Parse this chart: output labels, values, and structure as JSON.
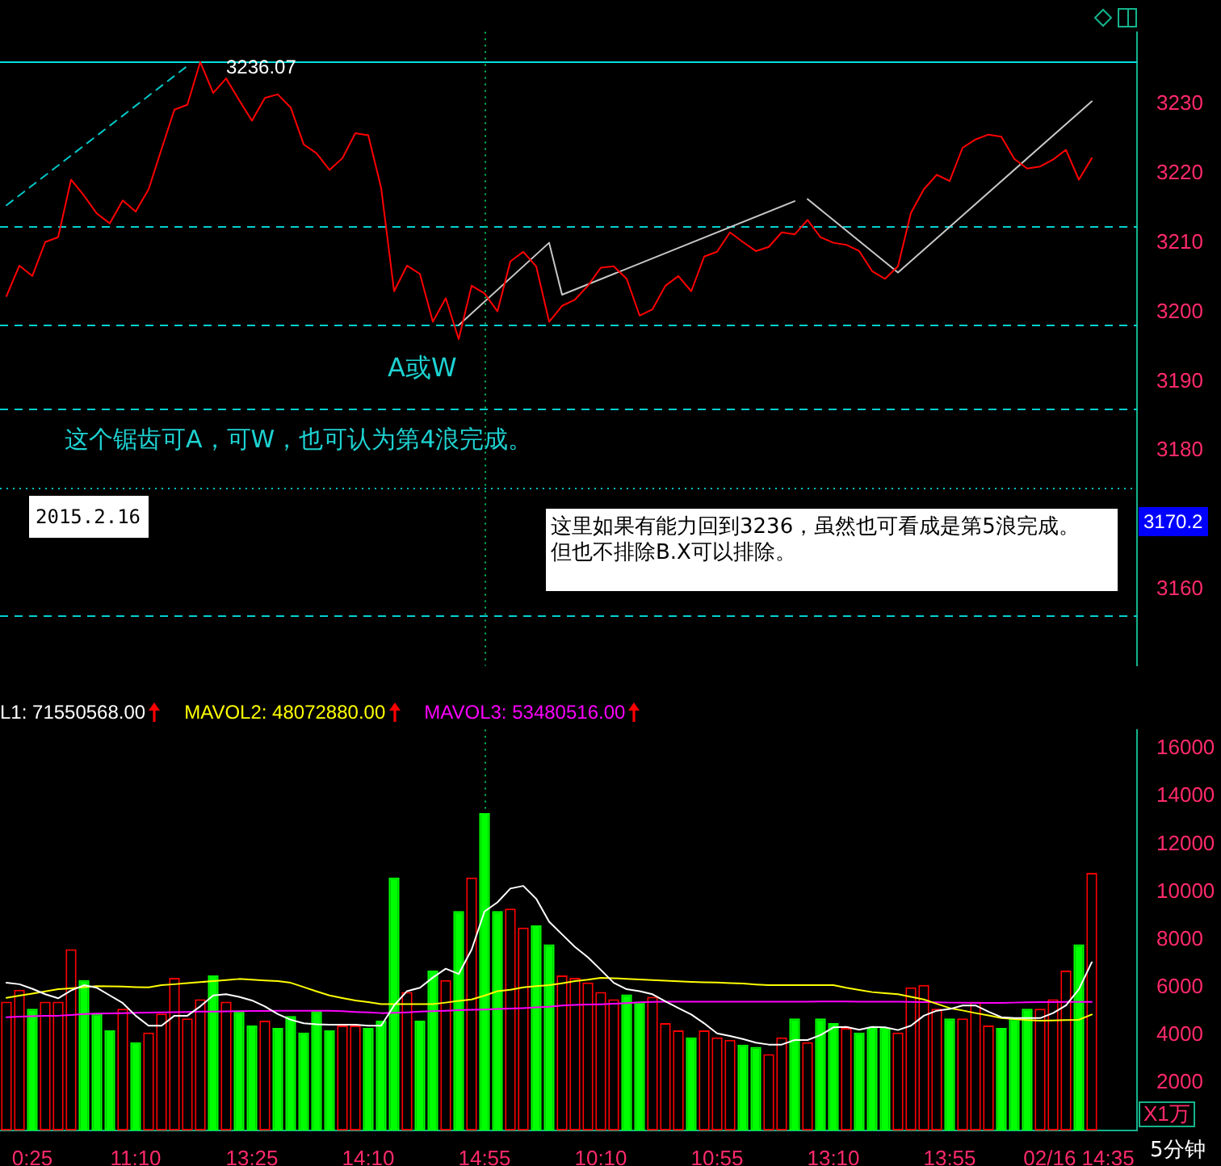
{
  "chart_data": [
    {
      "type": "line",
      "categories": [
        null,
        null,
        "0:25",
        null,
        null,
        null,
        null,
        null,
        null,
        null,
        "11:10",
        null,
        null,
        null,
        null,
        null,
        null,
        null,
        null,
        "13:25",
        null,
        null,
        null,
        null,
        null,
        null,
        null,
        null,
        "14:10",
        null,
        null,
        null,
        null,
        null,
        null,
        null,
        null,
        "14:55",
        null,
        null,
        null,
        null,
        null,
        null,
        null,
        null,
        "10:10",
        null,
        null,
        null,
        null,
        null,
        null,
        null,
        null,
        "10:55",
        null,
        null,
        null,
        null,
        null,
        null,
        null,
        null,
        "13:10",
        null,
        null,
        null,
        null,
        null,
        null,
        null,
        null,
        "13:55",
        null,
        null,
        null,
        null,
        null,
        null,
        null,
        null,
        null,
        "02/16 14:35",
        null,
        null,
        null,
        null
      ],
      "tick_labels": "y",
      "ylim": [
        3149,
        3240.4
      ],
      "yticks": [
        3160,
        3180,
        3190,
        3200,
        3210,
        3220,
        3230
      ],
      "series": [
        {
          "color": "#ff0000",
          "values": [
            3202.3,
            3206.7,
            3205.2,
            3210.1,
            3210.8,
            3219.1,
            3216.8,
            3214.2,
            3212.8,
            3216.1,
            3214.5,
            3217.7,
            3223.5,
            3229.2,
            3229.9,
            3236.07,
            3231.6,
            3233.7,
            3230.6,
            3227.6,
            3230.9,
            3231.4,
            3229.5,
            3224.2,
            3222.9,
            3220.5,
            3222.2,
            3225.8,
            3225.5,
            3217.9,
            3203.0,
            3206.7,
            3205.5,
            3198.6,
            3202.0,
            3196.1,
            3203.8,
            3202.7,
            3200.1,
            3207.3,
            3208.7,
            3206.6,
            3198.6,
            3200.9,
            3201.8,
            3203.8,
            3206.4,
            3206.6,
            3204.8,
            3199.5,
            3200.4,
            3203.8,
            3205.2,
            3203.0,
            3208.0,
            3208.7,
            3211.5,
            3210.1,
            3208.8,
            3209.4,
            3211.5,
            3211.2,
            3213.3,
            3210.8,
            3210.0,
            3209.7,
            3208.8,
            3205.9,
            3204.8,
            3206.6,
            3214.3,
            3217.7,
            3219.8,
            3218.9,
            3223.7,
            3224.9,
            3225.6,
            3225.3,
            3222.1,
            3220.7,
            3221.0,
            3222.0,
            3223.4,
            3219.1,
            3222.2,
            null,
            null,
            null
          ]
        },
        {
          "color": "#c8c8c8",
          "values": [
            null,
            null,
            null,
            null,
            null,
            null,
            null,
            null,
            null,
            null,
            null,
            null,
            null,
            null,
            null,
            null,
            null,
            null,
            null,
            null,
            null,
            null,
            null,
            null,
            null,
            null,
            null,
            null,
            null,
            null,
            null,
            null,
            null,
            null,
            null,
            3198.1,
            null,
            null,
            null,
            null,
            null,
            null,
            3210.0,
            3202.5,
            null,
            null,
            null,
            null,
            null,
            null,
            null,
            null,
            null,
            null,
            null,
            null,
            null,
            null,
            null,
            null,
            null,
            3216.0,
            null,
            null,
            null,
            null,
            null,
            null,
            null,
            null,
            null,
            null,
            null,
            null,
            null,
            null,
            null,
            null,
            null,
            null,
            null,
            null,
            null,
            null,
            null,
            null,
            null,
            null
          ]
        },
        {
          "color": "#c8c8c8",
          "values": [
            null,
            null,
            null,
            null,
            null,
            null,
            null,
            null,
            null,
            null,
            null,
            null,
            null,
            null,
            null,
            null,
            null,
            null,
            null,
            null,
            null,
            null,
            null,
            null,
            null,
            null,
            null,
            null,
            null,
            null,
            null,
            null,
            null,
            null,
            null,
            null,
            null,
            null,
            null,
            null,
            null,
            null,
            null,
            null,
            null,
            null,
            null,
            null,
            null,
            null,
            null,
            null,
            null,
            null,
            null,
            null,
            null,
            null,
            null,
            null,
            null,
            null,
            3216.3,
            null,
            null,
            null,
            null,
            null,
            null,
            3205.7,
            null,
            null,
            null,
            null,
            null,
            null,
            null,
            null,
            null,
            null,
            null,
            null,
            null,
            null,
            3230.4,
            null,
            null,
            null
          ]
        },
        {
          "color": "#00c8c8",
          "line_style": "dashed",
          "values": [
            3215.4,
            null,
            null,
            null,
            null,
            null,
            null,
            null,
            null,
            null,
            null,
            null,
            null,
            null,
            3235.5,
            null,
            null,
            null,
            null,
            null,
            null,
            null,
            null,
            null,
            null,
            null,
            null,
            null,
            null,
            null,
            null,
            null,
            null,
            null,
            null,
            null,
            null,
            null,
            null,
            null,
            null,
            null,
            null,
            null,
            null,
            null,
            null,
            null,
            null,
            null,
            null,
            null,
            null,
            null,
            null,
            null,
            null,
            null,
            null,
            null,
            null,
            null,
            null,
            null,
            null,
            null,
            null,
            null,
            null,
            null,
            null,
            null,
            null,
            null,
            null,
            null,
            null,
            null,
            null,
            null,
            null,
            null,
            null,
            null,
            null,
            null,
            null,
            null
          ]
        }
      ],
      "ref_lines": [
        {
          "axis": "y",
          "value": 3236.07,
          "color": "#00e0e0",
          "line_style": "solid"
        },
        {
          "axis": "y",
          "value": 3212.5,
          "color": "#00d0d0",
          "line_style": "dashed"
        },
        {
          "axis": "y",
          "value": 3198.1,
          "color": "#00d0d0",
          "line_style": "dashed"
        },
        {
          "axis": "y",
          "value": 3186.1,
          "color": "#00d0d0",
          "line_style": "dashed"
        },
        {
          "axis": "y",
          "value": 3174.6,
          "color": "#00c0c0",
          "line_style": "dotted"
        },
        {
          "axis": "y",
          "value": 3156.2,
          "color": "#00d0d0",
          "line_style": "dashed"
        },
        {
          "axis": "x",
          "value": "14:55",
          "color": "#00c060",
          "line_style": "dotted"
        }
      ],
      "annotations": [
        {
          "text": "3236.07",
          "y": 3236.07
        },
        "3170.2",
        "A或W",
        "这个锯齿可A，可W，也可认为第4浪完成。",
        "2015.2.16",
        "这里如果有能力回到3236，虽然也可看成是第5浪完成。",
        "但也不排除B.X可以排除。"
      ]
    },
    {
      "type": "bar",
      "categories": [
        null,
        null,
        "0:25",
        null,
        null,
        null,
        null,
        null,
        null,
        null,
        "11:10",
        null,
        null,
        null,
        null,
        null,
        null,
        null,
        null,
        "13:25",
        null,
        null,
        null,
        null,
        null,
        null,
        null,
        null,
        "14:10",
        null,
        null,
        null,
        null,
        null,
        null,
        null,
        null,
        "14:55",
        null,
        null,
        null,
        null,
        null,
        null,
        null,
        null,
        "10:10",
        null,
        null,
        null,
        null,
        null,
        null,
        null,
        null,
        "10:55",
        null,
        null,
        null,
        null,
        null,
        null,
        null,
        null,
        "13:10",
        null,
        null,
        null,
        null,
        null,
        null,
        null,
        null,
        "13:55",
        null,
        null,
        null,
        null,
        null,
        null,
        null,
        null,
        null,
        "02/16 14:35",
        null,
        null,
        null,
        null
      ],
      "ylim": [
        0,
        16800
      ],
      "yticks": [
        2000,
        4000,
        6000,
        8000,
        10000,
        12000,
        14000,
        16000
      ],
      "ylabel": "X1万",
      "legend": "top left",
      "series": [
        {
          "color": "#ff0000",
          "values": [
            5400,
            5900,
            null,
            5400,
            5400,
            7600,
            null,
            null,
            null,
            5100,
            null,
            4100,
            4900,
            6400,
            4700,
            5500,
            null,
            5400,
            null,
            null,
            4600,
            null,
            null,
            null,
            null,
            null,
            4400,
            4400,
            null,
            null,
            null,
            5800,
            null,
            null,
            6300,
            null,
            10600,
            null,
            null,
            9300,
            8500,
            null,
            null,
            6500,
            6400,
            6200,
            5800,
            5500,
            null,
            null,
            5600,
            4500,
            4200,
            null,
            4200,
            3900,
            3800,
            null,
            null,
            3200,
            3900,
            null,
            3700,
            null,
            null,
            4300,
            null,
            null,
            null,
            4100,
            6000,
            6100,
            5100,
            null,
            4700,
            5400,
            4400,
            null,
            null,
            null,
            5100,
            5500,
            6700,
            null,
            10800,
            null,
            null,
            null
          ]
        },
        {
          "color": "#00ff00",
          "values": [
            null,
            null,
            5100,
            null,
            null,
            null,
            6300,
            4900,
            4200,
            null,
            3700,
            null,
            null,
            null,
            null,
            null,
            6500,
            null,
            5000,
            4400,
            null,
            4300,
            4800,
            4100,
            5000,
            4200,
            null,
            null,
            4300,
            4600,
            10600,
            null,
            4600,
            6700,
            null,
            9200,
            null,
            13300,
            9200,
            null,
            null,
            8600,
            7800,
            null,
            null,
            null,
            null,
            null,
            5700,
            5400,
            null,
            null,
            null,
            3900,
            null,
            null,
            null,
            3600,
            3500,
            null,
            null,
            4700,
            null,
            4700,
            4500,
            null,
            4100,
            4300,
            4300,
            null,
            null,
            null,
            null,
            4700,
            null,
            null,
            null,
            4300,
            4700,
            5100,
            null,
            null,
            null,
            7800,
            null,
            null,
            null,
            null
          ]
        },
        {
          "type": "line",
          "name": "L1: 71550568.00",
          "color": "#ffffff",
          "values": [
            6190,
            6130,
            5940,
            5710,
            5540,
            5870,
            6090,
            5980,
            5660,
            5340,
            4810,
            4390,
            4390,
            4810,
            4810,
            5200,
            5660,
            5710,
            5600,
            5450,
            5200,
            4880,
            4640,
            4490,
            4450,
            4430,
            4430,
            4430,
            4390,
            4390,
            5240,
            5840,
            5980,
            6410,
            6780,
            6560,
            7580,
            9180,
            9560,
            10140,
            10250,
            9710,
            8750,
            8220,
            7690,
            7260,
            6730,
            6190,
            5920,
            5840,
            5710,
            5410,
            5130,
            4860,
            4490,
            4070,
            3960,
            3830,
            3680,
            3600,
            3600,
            3790,
            3790,
            4000,
            4320,
            4340,
            4220,
            4340,
            4320,
            4210,
            4390,
            4810,
            5020,
            5090,
            5240,
            5240,
            4980,
            4750,
            4710,
            4710,
            4710,
            4920,
            5240,
            5920,
            7050,
            null,
            null,
            null
          ]
        },
        {
          "type": "line",
          "name": "MAVOL2: 48072880.00",
          "color": "#ffff00",
          "values": [
            5560,
            5650,
            5740,
            5830,
            5920,
            5960,
            6010,
            6050,
            6040,
            6030,
            6010,
            6000,
            6090,
            6130,
            6180,
            6220,
            6260,
            6300,
            6350,
            6320,
            6290,
            6260,
            6190,
            6010,
            5830,
            5660,
            5550,
            5450,
            5380,
            5300,
            5300,
            5300,
            5300,
            5300,
            5360,
            5430,
            5490,
            5650,
            5840,
            5900,
            6000,
            6050,
            6090,
            6170,
            6260,
            6320,
            6400,
            6380,
            6350,
            6330,
            6300,
            6280,
            6250,
            6230,
            6210,
            6200,
            6180,
            6160,
            6120,
            6090,
            6090,
            6090,
            6090,
            6090,
            6090,
            5980,
            5890,
            5800,
            5750,
            5710,
            5600,
            5490,
            5310,
            5130,
            5030,
            4920,
            4820,
            4710,
            4670,
            4630,
            4600,
            4610,
            4630,
            4640,
            4860,
            null,
            null,
            null
          ]
        },
        {
          "type": "line",
          "name": "MAVOL3: 53480516.00",
          "color": "#ff00ff",
          "values": [
            4750,
            4770,
            4790,
            4810,
            4810,
            4840,
            4880,
            4900,
            4910,
            4920,
            4930,
            4940,
            4950,
            4960,
            4970,
            4980,
            4980,
            4990,
            5000,
            5010,
            5010,
            5020,
            5020,
            5020,
            5020,
            5020,
            5000,
            4970,
            4950,
            4920,
            4930,
            4950,
            4980,
            5000,
            5020,
            5040,
            5060,
            5070,
            5090,
            5110,
            5130,
            5160,
            5190,
            5240,
            5260,
            5280,
            5290,
            5310,
            5340,
            5370,
            5390,
            5400,
            5400,
            5400,
            5400,
            5400,
            5400,
            5400,
            5400,
            5400,
            5400,
            5400,
            5400,
            5410,
            5410,
            5410,
            5400,
            5400,
            5400,
            5400,
            5390,
            5380,
            5370,
            5360,
            5360,
            5350,
            5350,
            5350,
            5360,
            5370,
            5380,
            5380,
            5390,
            5390,
            5390,
            null,
            null,
            null
          ]
        }
      ],
      "ref_lines": [
        {
          "axis": "x",
          "value": "14:55",
          "color": "#00c060",
          "line_style": "dotted"
        }
      ],
      "annotations": [
        "5分钟"
      ]
    }
  ]
}
